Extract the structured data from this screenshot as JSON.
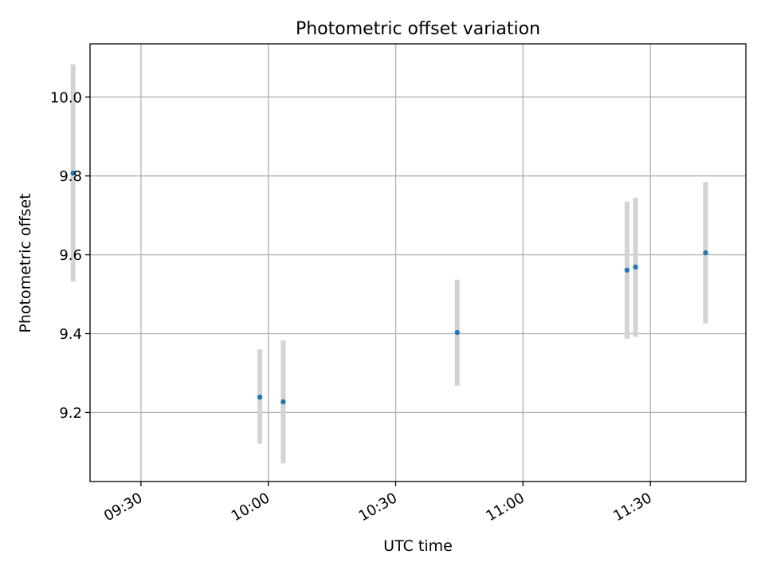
{
  "chart_data": {
    "type": "scatter",
    "title": "Photometric offset variation",
    "xlabel": "UTC time",
    "ylabel": "Photometric offset",
    "grid": true,
    "xlim": [
      "09:18",
      "11:52:30"
    ],
    "ylim": [
      9.025,
      10.135
    ],
    "xticks": [
      "09:30",
      "10:00",
      "10:30",
      "11:00",
      "11:30"
    ],
    "yticks": [
      "9.2",
      "9.4",
      "9.6",
      "9.8",
      "10.0"
    ],
    "points": [
      {
        "x": "09:14",
        "y": 9.807,
        "err_low": 9.532,
        "err_high": 10.083
      },
      {
        "x": "09:58",
        "y": 9.239,
        "err_low": 9.121,
        "err_high": 9.36
      },
      {
        "x": "10:03:30",
        "y": 9.227,
        "err_low": 9.071,
        "err_high": 9.383
      },
      {
        "x": "10:44:30",
        "y": 9.403,
        "err_low": 9.268,
        "err_high": 9.537
      },
      {
        "x": "11:24:30",
        "y": 9.561,
        "err_low": 9.387,
        "err_high": 9.735
      },
      {
        "x": "11:26:30",
        "y": 9.569,
        "err_low": 9.392,
        "err_high": 9.744
      },
      {
        "x": "11:43",
        "y": 9.605,
        "err_low": 9.426,
        "err_high": 9.785
      }
    ],
    "colors": {
      "point": "#1f77b4",
      "errorbar": "#d3d3d3",
      "grid": "#b0b0b0"
    }
  }
}
